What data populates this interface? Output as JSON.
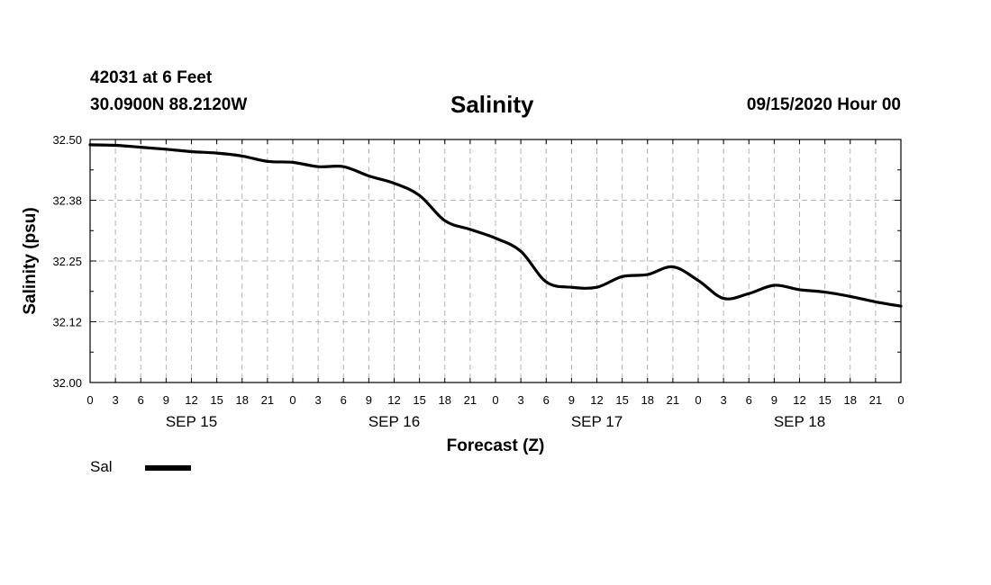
{
  "header": {
    "station": "42031 at 6 Feet",
    "coords": "30.0900N 88.2120W",
    "title": "Salinity",
    "run": "09/15/2020 Hour 00"
  },
  "chart_data": {
    "type": "line",
    "title": "Salinity",
    "xlabel": "Forecast (Z)",
    "ylabel": "Salinity (psu)",
    "ylim": [
      32.0,
      32.5
    ],
    "xlim": [
      0,
      96
    ],
    "y_ticks": [
      "32.00",
      "32.12",
      "32.25",
      "32.38",
      "32.50"
    ],
    "x_tick_labels": [
      "0",
      "3",
      "6",
      "9",
      "12",
      "15",
      "18",
      "21",
      "0",
      "3",
      "6",
      "9",
      "12",
      "15",
      "18",
      "21",
      "0",
      "3",
      "6",
      "9",
      "12",
      "15",
      "18",
      "21",
      "0",
      "3",
      "6",
      "9",
      "12",
      "15",
      "18",
      "21",
      "0"
    ],
    "day_labels": [
      {
        "label": "SEP 15",
        "hour": 12
      },
      {
        "label": "SEP 16",
        "hour": 36
      },
      {
        "label": "SEP 17",
        "hour": 60
      },
      {
        "label": "SEP 18",
        "hour": 84
      }
    ],
    "grid": true,
    "series": [
      {
        "name": "Sal",
        "color": "#000000",
        "x": [
          0,
          3,
          6,
          9,
          12,
          15,
          18,
          21,
          24,
          27,
          30,
          33,
          36,
          39,
          42,
          45,
          48,
          51,
          54,
          57,
          60,
          63,
          66,
          69,
          72,
          75,
          78,
          81,
          84,
          87,
          90,
          93,
          96
        ],
        "values": [
          32.489,
          32.488,
          32.484,
          32.48,
          32.475,
          32.472,
          32.466,
          32.455,
          32.453,
          32.444,
          32.444,
          32.425,
          32.41,
          32.385,
          32.333,
          32.315,
          32.297,
          32.27,
          32.207,
          32.196,
          32.196,
          32.218,
          32.222,
          32.238,
          32.21,
          32.173,
          32.183,
          32.2,
          32.191,
          32.186,
          32.177,
          32.166,
          32.157
        ]
      }
    ]
  },
  "legend": {
    "label": "Sal"
  }
}
